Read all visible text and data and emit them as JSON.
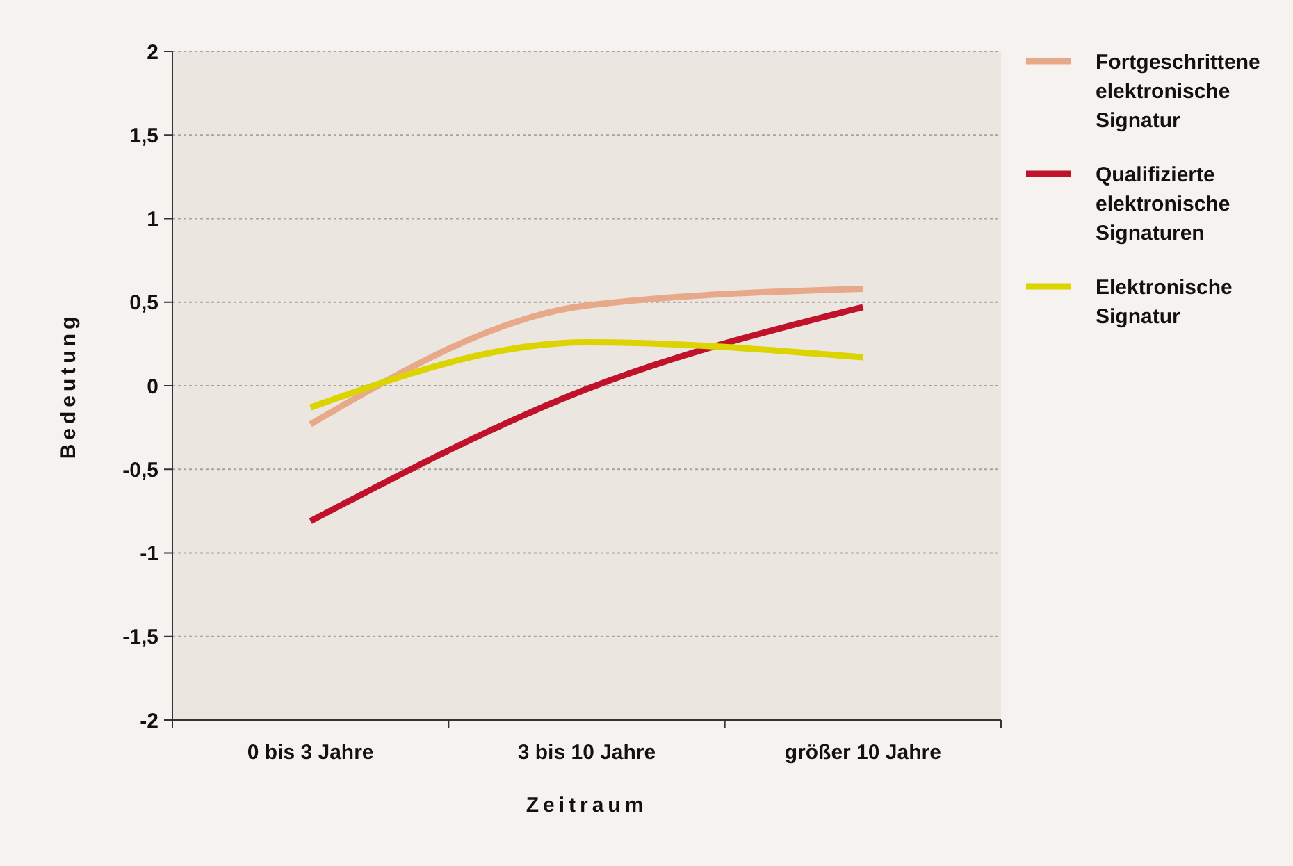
{
  "chart_data": {
    "type": "line",
    "xlabel": "Zeitraum",
    "ylabel": "Bedeutung",
    "categories": [
      "0 bis 3 Jahre",
      "3 bis 10 Jahre",
      "größer 10 Jahre"
    ],
    "series": [
      {
        "name": "Fortgeschrittene elektronische Signatur",
        "color": "#e8a98a",
        "values": [
          -0.23,
          0.48,
          0.58
        ]
      },
      {
        "name": "Qualifizierte elektronische Signaturen",
        "color": "#c0122a",
        "values": [
          -0.81,
          -0.02,
          0.47
        ]
      },
      {
        "name": "Elektronische Signatur",
        "color": "#dcd400",
        "values": [
          -0.13,
          0.26,
          0.17
        ]
      }
    ],
    "ylim": [
      -2,
      2
    ],
    "yticks": [
      -2,
      {
        "value": -1.5,
        "label": "-1,5"
      },
      -1,
      {
        "value": -0.5,
        "label": "-0,5"
      },
      0,
      {
        "value": 0.5,
        "label": "0,5"
      },
      1,
      {
        "value": 1.5,
        "label": "1,5"
      },
      2
    ],
    "grid": "y",
    "legend": "right",
    "marker": "none",
    "line_style": "solid"
  }
}
